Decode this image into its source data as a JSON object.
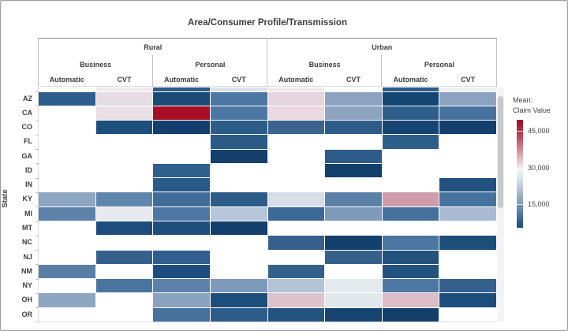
{
  "title": "Area/Consumer Profile/Transmission",
  "y_axis": {
    "label": "State"
  },
  "legend": {
    "title_line1": "Mean:",
    "title_line2": "Claim Value",
    "tick_labels": [
      "45,000",
      "30,000",
      "15,000"
    ]
  },
  "chart_data": {
    "type": "heatmap",
    "title": "Area/Consumer Profile/Transmission",
    "column_header_levels": {
      "level1": [
        "Rural",
        "Urban"
      ],
      "level2": [
        "Business",
        "Personal",
        "Business",
        "Personal"
      ],
      "level3": [
        "Automatic",
        "CVT",
        "Automatic",
        "CVT",
        "Automatic",
        "CVT",
        "Automatic",
        "CVT"
      ]
    },
    "columns_flat": [
      "Rural/Business/Automatic",
      "Rural/Business/CVT",
      "Rural/Personal/Automatic",
      "Rural/Personal/CVT",
      "Urban/Business/Automatic",
      "Urban/Business/CVT",
      "Urban/Personal/Automatic",
      "Urban/Personal/CVT"
    ],
    "color_scale": {
      "label": "Mean: Claim Value",
      "orientation": "vertical",
      "high_color": "#9c1127",
      "mid_color": "#f4f4f5",
      "low_color": "#1d4e7c",
      "ticks": [
        45000,
        30000,
        15000
      ],
      "approx_range": [
        5000,
        50000
      ]
    },
    "partial_top_row_colors": [
      null,
      "#efe9ec",
      "#2d5c88",
      "#dde2e8",
      "#f2ebee",
      null,
      "#2d5c88",
      "#eef1f5"
    ],
    "rows": [
      {
        "state": "AZ",
        "colors": [
          "#2e5e8c",
          "#e6dde3",
          "#1b4a77",
          "#4c77a3",
          "#e6d5dc",
          "#8ba3c0",
          "#134673",
          "#8ba3c0"
        ],
        "approx_values": [
          12000,
          29500,
          8500,
          15000,
          31000,
          20000,
          7000,
          20000
        ]
      },
      {
        "state": "CA",
        "colors": [
          null,
          "#e9e0e5",
          "#a50e24",
          "#4c77a3",
          "#ead9e0",
          "#8ba3c0",
          "#2e5f8a",
          "#47729e"
        ],
        "approx_values": [
          null,
          29500,
          47500,
          15000,
          31000,
          20000,
          11500,
          14000
        ]
      },
      {
        "state": "CO",
        "colors": [
          null,
          "#1e4e7c",
          "#123f6d",
          "#2d5c88",
          "#3a648f",
          "#2e5c8a",
          "#174471",
          "#123f6b"
        ],
        "approx_values": [
          null,
          9000,
          6000,
          11500,
          13000,
          11500,
          7500,
          6000
        ]
      },
      {
        "state": "FL",
        "colors": [
          null,
          null,
          null,
          "#2a5a86",
          null,
          null,
          "#2e5f8a",
          null
        ],
        "approx_values": [
          null,
          null,
          null,
          11500,
          null,
          null,
          11500,
          null
        ]
      },
      {
        "state": "GA",
        "colors": [
          null,
          null,
          null,
          "#143f6b",
          null,
          "#2e5c8a",
          null,
          null
        ],
        "approx_values": [
          null,
          null,
          null,
          6500,
          null,
          11500,
          null,
          null
        ]
      },
      {
        "state": "ID",
        "colors": [
          null,
          null,
          "#2e5f8d",
          null,
          null,
          "#123f6b",
          null,
          null
        ],
        "approx_values": [
          null,
          null,
          11500,
          null,
          null,
          6000,
          null,
          null
        ]
      },
      {
        "state": "IN",
        "colors": [
          null,
          null,
          "#2a5a88",
          null,
          null,
          null,
          null,
          "#21517f"
        ],
        "approx_values": [
          null,
          null,
          11000,
          null,
          null,
          null,
          null,
          9500
        ]
      },
      {
        "state": "KY",
        "colors": [
          "#8ea6c1",
          "#6186ad",
          "#426d99",
          "#2d5c88",
          "#d8dee7",
          "#5c81a8",
          "#cf9cab",
          "#47729e"
        ],
        "approx_values": [
          20000,
          16500,
          14000,
          11500,
          25500,
          16500,
          36500,
          14000
        ]
      },
      {
        "state": "MI",
        "colors": [
          "#5d81a8",
          "#e6eaee",
          "#4d78a3",
          "#b7c6da",
          "#3c6897",
          "#7e9aba",
          "#46719d",
          "#a9bbd2"
        ],
        "approx_values": [
          16500,
          26500,
          15000,
          22500,
          13000,
          19000,
          14000,
          22000
        ]
      },
      {
        "state": "MT",
        "colors": [
          null,
          "#1d4d7c",
          "#1d4d7c",
          "#123f6b",
          null,
          null,
          null,
          null
        ],
        "approx_values": [
          null,
          9000,
          9000,
          6000,
          null,
          null,
          null,
          null
        ]
      },
      {
        "state": "NC",
        "colors": [
          null,
          null,
          null,
          null,
          "#35608c",
          "#123f6b",
          "#4a76a1",
          "#1d4d7a"
        ],
        "approx_values": [
          null,
          null,
          null,
          null,
          12000,
          6000,
          14500,
          9000
        ]
      },
      {
        "state": "NJ",
        "colors": [
          null,
          "#35608c",
          "#305e8e",
          null,
          null,
          "#35608c",
          "#24527f",
          null
        ],
        "approx_values": [
          null,
          12000,
          11500,
          null,
          null,
          12000,
          9500,
          null
        ]
      },
      {
        "state": "NM",
        "colors": [
          "#5a7fa7",
          null,
          "#1d4d7c",
          null,
          "#31608b",
          null,
          "#24527f",
          null
        ],
        "approx_values": [
          16500,
          null,
          9000,
          null,
          11500,
          null,
          9500,
          null
        ]
      },
      {
        "state": "NY",
        "colors": [
          null,
          "#4a74a0",
          "#5d82a9",
          "#7e9aba",
          "#b3c2d5",
          "#e4e9ed",
          "#4d78a3",
          "#35608c"
        ],
        "approx_values": [
          null,
          14500,
          16000,
          19000,
          22500,
          26500,
          15000,
          12000
        ]
      },
      {
        "state": "OH",
        "colors": [
          "#8ea6c1",
          null,
          "#8aa2be",
          "#1d4d7c",
          "#ddc3cd",
          "#e2e7ec",
          "#dbbcc8",
          "#1d4d7c"
        ],
        "approx_values": [
          20000,
          null,
          20000,
          9000,
          33500,
          26500,
          34000,
          9000
        ]
      },
      {
        "state": "OR",
        "colors": [
          null,
          null,
          "#47729e",
          "#2d5c88",
          "#235380",
          "#17446f",
          "#143f6a",
          null
        ],
        "approx_values": [
          null,
          null,
          14000,
          11500,
          10000,
          7500,
          6500,
          null
        ]
      }
    ]
  }
}
